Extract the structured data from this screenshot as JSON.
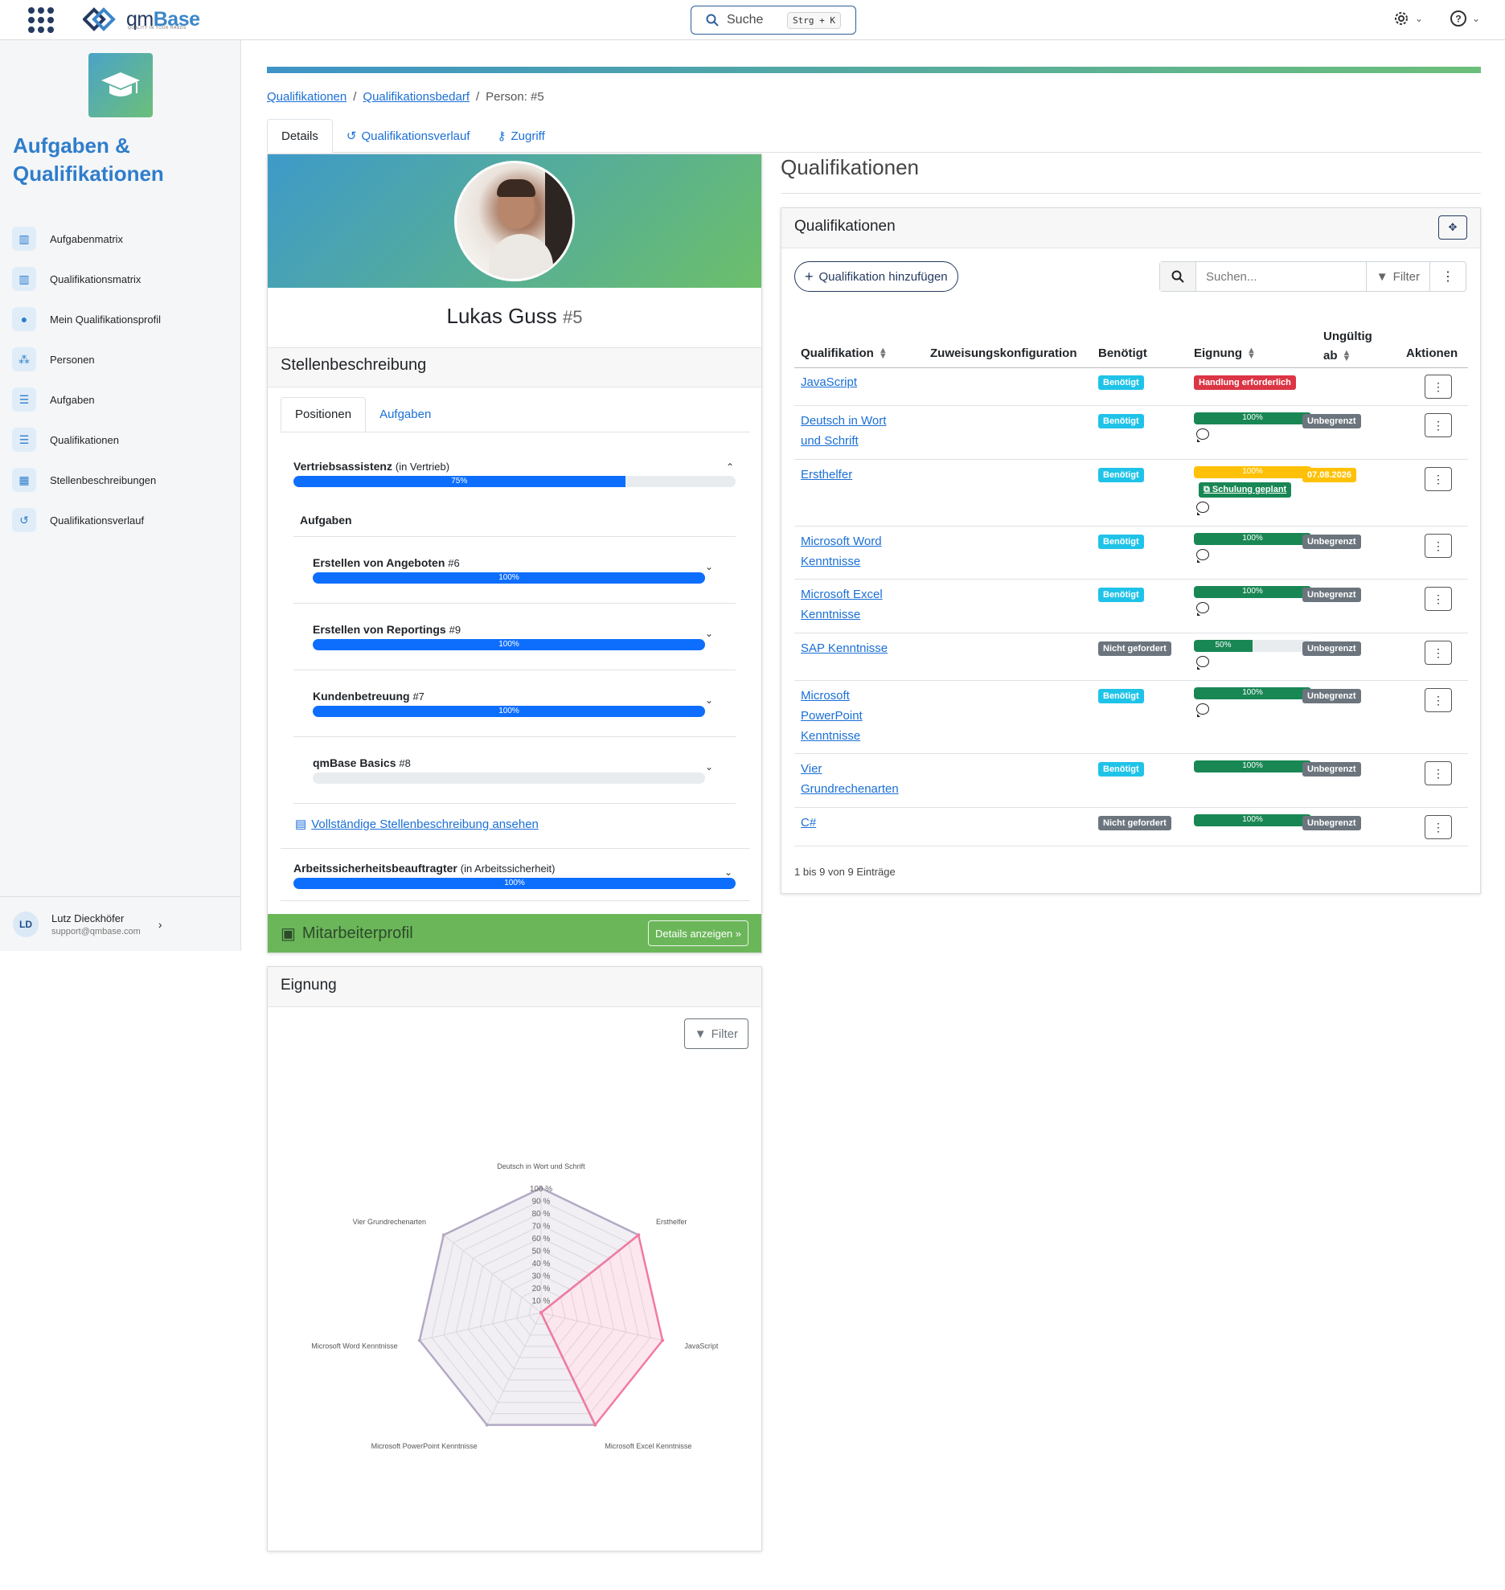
{
  "topbar": {
    "logo": "qmBase",
    "logo_sub": "QUALITY IN YOUR HANDS",
    "search_label": "Suche",
    "search_shortcut": "Strg + K"
  },
  "sidebar": {
    "title": "Aufgaben & Qualifikationen",
    "items": [
      {
        "label": "Aufgabenmatrix",
        "icon": "matrix-icon"
      },
      {
        "label": "Qualifikationsmatrix",
        "icon": "matrix-icon"
      },
      {
        "label": "Mein Qualifikationsprofil",
        "icon": "user-icon"
      },
      {
        "label": "Personen",
        "icon": "users-icon"
      },
      {
        "label": "Aufgaben",
        "icon": "list-icon"
      },
      {
        "label": "Qualifikationen",
        "icon": "list-icon"
      },
      {
        "label": "Stellenbeschreibungen",
        "icon": "grid-icon"
      },
      {
        "label": "Qualifikationsverlauf",
        "icon": "history-icon"
      }
    ],
    "user": {
      "initials": "LD",
      "name": "Lutz Dieckhöfer",
      "email": "support@qmbase.com"
    }
  },
  "breadcrumb": {
    "items": [
      "Qualifikationen",
      "Qualifikationsbedarf"
    ],
    "current": "Person: #5"
  },
  "tabs": [
    "Details",
    "Qualifikationsverlauf",
    "Zugriff"
  ],
  "profile": {
    "name": "Lukas Guss",
    "id": "#5",
    "section_title": "Stellenbeschreibung",
    "subtabs": [
      "Positionen",
      "Aufgaben"
    ],
    "position1": {
      "title": "Vertriebsassistenz",
      "dept": "(in Vertrieb)",
      "progress": 75,
      "label": "75%"
    },
    "tasks_heading": "Aufgaben",
    "tasks": [
      {
        "title": "Erstellen von Angeboten",
        "id": "#6",
        "progress": 100,
        "label": "100%"
      },
      {
        "title": "Erstellen von Reportings",
        "id": "#9",
        "progress": 100,
        "label": "100%"
      },
      {
        "title": "Kundenbetreuung",
        "id": "#7",
        "progress": 100,
        "label": "100%"
      },
      {
        "title": "qmBase Basics",
        "id": "#8",
        "progress": 0,
        "label": ""
      }
    ],
    "full_link": "Vollständige Stellenbeschreibung ansehen",
    "position2": {
      "title": "Arbeitssicherheitsbeauftragter",
      "dept": "(in Arbeitssicherheit)",
      "progress": 100,
      "label": "100%"
    },
    "employee_profile": "Mitarbeiterprofil",
    "details_button": "Details anzeigen »"
  },
  "qualifications": {
    "heading": "Qualifikationen",
    "card_title": "Qualifikationen",
    "add_button": "Qualifikation hinzufügen",
    "search_placeholder": "Suchen...",
    "filter_label": "Filter",
    "columns": {
      "name": "Qualifikation",
      "config": "Zuweisungskonfiguration",
      "required": "Benötigt",
      "suitability": "Eignung",
      "invalid_line1": "Ungültig",
      "invalid_line2": "ab",
      "actions": "Aktionen"
    },
    "rows": [
      {
        "name": "JavaScript",
        "required": "Benötigt",
        "req_type": "info",
        "status": "Handlung erforderlich",
        "progress": null,
        "comment": false,
        "invalid": ""
      },
      {
        "name": "Deutsch in Wort und Schrift",
        "required": "Benötigt",
        "req_type": "info",
        "progress": 100,
        "progress_label": "100%",
        "color": "#198754",
        "comment": true,
        "invalid": "Unbegrenzt"
      },
      {
        "name": "Ersthelfer",
        "required": "Benötigt",
        "req_type": "info",
        "progress": 100,
        "progress_label": "100%",
        "color": "#ffc107",
        "training": "Schulung geplant",
        "comment": true,
        "invalid": "07.08.2026",
        "invalid_type": "yellow"
      },
      {
        "name": "Microsoft Word Kenntnisse",
        "required": "Benötigt",
        "req_type": "info",
        "progress": 100,
        "progress_label": "100%",
        "color": "#198754",
        "comment": true,
        "invalid": "Unbegrenzt"
      },
      {
        "name": "Microsoft Excel Kenntnisse",
        "required": "Benötigt",
        "req_type": "info",
        "progress": 100,
        "progress_label": "100%",
        "color": "#198754",
        "comment": true,
        "invalid": "Unbegrenzt"
      },
      {
        "name": "SAP Kenntnisse",
        "required": "Nicht gefordert",
        "req_type": "grey",
        "progress": 50,
        "progress_label": "50%",
        "color": "#198754",
        "comment": true,
        "invalid": "Unbegrenzt"
      },
      {
        "name": "Microsoft PowerPoint Kenntnisse",
        "required": "Benötigt",
        "req_type": "info",
        "progress": 100,
        "progress_label": "100%",
        "color": "#198754",
        "comment": true,
        "invalid": "Unbegrenzt"
      },
      {
        "name": "Vier Grundrechenarten",
        "required": "Benötigt",
        "req_type": "info",
        "progress": 100,
        "progress_label": "100%",
        "color": "#198754",
        "comment": false,
        "invalid": "Unbegrenzt"
      },
      {
        "name": "C#",
        "required": "Nicht gefordert",
        "req_type": "grey",
        "progress": 100,
        "progress_label": "100%",
        "color": "#198754",
        "comment": false,
        "invalid": "Unbegrenzt"
      }
    ],
    "footer": "1 bis 9 von 9 Einträge"
  },
  "suitability": {
    "title": "Eignung",
    "filter_label": "Filter",
    "chart_data": {
      "type": "radar",
      "categories": [
        "Deutsch in Wort und Schrift",
        "Ersthelfer",
        "JavaScript",
        "Microsoft Excel Kenntnisse",
        "Microsoft PowerPoint Kenntnisse",
        "Microsoft Word Kenntnisse",
        "Vier Grundrechenarten"
      ],
      "ticks": [
        "10 %",
        "20 %",
        "30 %",
        "40 %",
        "50 %",
        "60 %",
        "70 %",
        "80 %",
        "90 %",
        "100 %"
      ],
      "range": [
        0,
        100
      ],
      "series": [
        {
          "values": [
            100,
            100,
            0,
            100,
            100,
            100,
            100
          ],
          "color": "#b3a9c4"
        },
        {
          "values": [
            0,
            100,
            100,
            100,
            0,
            0,
            0
          ],
          "color": "#f07ba0"
        }
      ]
    }
  }
}
